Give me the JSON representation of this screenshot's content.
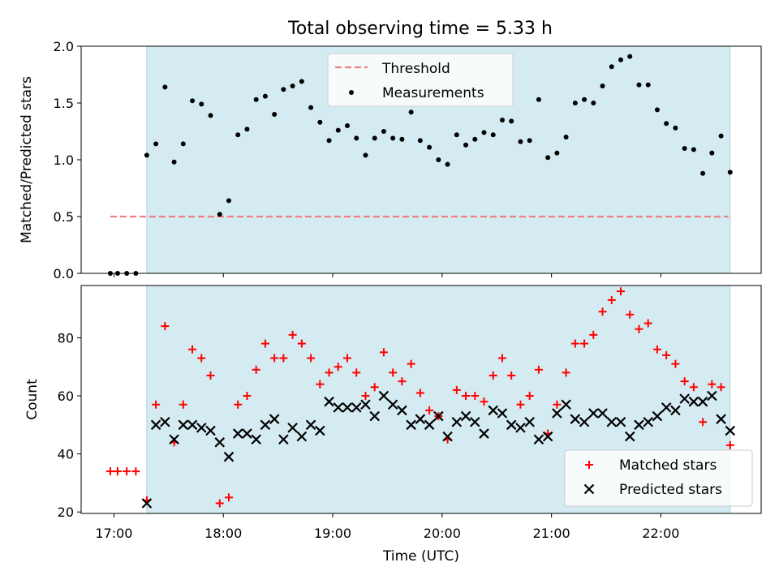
{
  "title": "Total observing time = 5.33 h",
  "colors": {
    "observing_span": "#d4ebf1",
    "threshold": "#f08080",
    "matched": "#ff0000",
    "predicted": "#000000",
    "measurement": "#000000"
  },
  "chart_data": [
    {
      "type": "scatter",
      "panel": "top",
      "ylabel": "Matched/Predicted stars",
      "ylim": [
        0.0,
        2.0
      ],
      "yticks": [
        "0.0",
        "0.5",
        "1.0",
        "1.5",
        "2.0"
      ],
      "xlim": [
        "16:42",
        "22:55"
      ],
      "xticks": [
        "17:00",
        "18:00",
        "19:00",
        "20:00",
        "21:00",
        "22:00"
      ],
      "observing_span": [
        "17:18",
        "22:38"
      ],
      "threshold": {
        "name": "Threshold",
        "value": 0.5,
        "x_range": [
          "16:58",
          "22:37"
        ]
      },
      "legend": {
        "placement": "top-center",
        "entries": [
          "Threshold",
          "Measurements"
        ]
      },
      "series": [
        {
          "name": "Measurements",
          "marker": "dot",
          "x": [
            "16:58",
            "17:02",
            "17:07",
            "17:12",
            "17:18",
            "17:23",
            "17:28",
            "17:33",
            "17:38",
            "17:43",
            "17:48",
            "17:53",
            "17:58",
            "18:03",
            "18:08",
            "18:13",
            "18:18",
            "18:23",
            "18:28",
            "18:33",
            "18:38",
            "18:43",
            "18:48",
            "18:53",
            "18:58",
            "19:03",
            "19:08",
            "19:13",
            "19:18",
            "19:23",
            "19:28",
            "19:33",
            "19:38",
            "19:43",
            "19:48",
            "19:53",
            "19:58",
            "20:03",
            "20:08",
            "20:13",
            "20:18",
            "20:23",
            "20:28",
            "20:33",
            "20:38",
            "20:43",
            "20:48",
            "20:53",
            "20:58",
            "21:03",
            "21:08",
            "21:13",
            "21:18",
            "21:23",
            "21:28",
            "21:33",
            "21:38",
            "21:43",
            "21:48",
            "21:53",
            "21:58",
            "22:03",
            "22:08",
            "22:13",
            "22:18",
            "22:23",
            "22:28",
            "22:33",
            "22:38"
          ],
          "y": [
            0.0,
            0.0,
            0.0,
            0.0,
            1.04,
            1.14,
            1.64,
            0.98,
            1.14,
            1.52,
            1.49,
            1.39,
            0.52,
            0.64,
            1.22,
            1.27,
            1.53,
            1.56,
            1.4,
            1.62,
            1.65,
            1.69,
            1.46,
            1.33,
            1.17,
            1.26,
            1.3,
            1.19,
            1.04,
            1.19,
            1.25,
            1.19,
            1.18,
            1.42,
            1.17,
            1.11,
            1.0,
            0.96,
            1.22,
            1.13,
            1.18,
            1.24,
            1.22,
            1.35,
            1.34,
            1.16,
            1.17,
            1.53,
            1.02,
            1.06,
            1.2,
            1.5,
            1.53,
            1.5,
            1.65,
            1.82,
            1.88,
            1.91,
            1.66,
            1.66,
            1.44,
            1.32,
            1.28,
            1.1,
            1.09,
            0.88,
            1.06,
            1.21,
            0.89
          ]
        }
      ]
    },
    {
      "type": "scatter",
      "panel": "bottom",
      "ylabel": "Count",
      "xlabel": "Time (UTC)",
      "ylim": [
        19.5,
        98.0
      ],
      "yticks": [
        "20",
        "40",
        "60",
        "80"
      ],
      "xlim": [
        "16:42",
        "22:55"
      ],
      "xticks": [
        "17:00",
        "18:00",
        "19:00",
        "20:00",
        "21:00",
        "22:00"
      ],
      "observing_span": [
        "17:18",
        "22:38"
      ],
      "legend": {
        "placement": "bottom-right",
        "entries": [
          "Matched stars",
          "Predicted stars"
        ]
      },
      "series": [
        {
          "name": "Matched stars",
          "marker": "plus",
          "x": [
            "16:58",
            "17:02",
            "17:07",
            "17:12",
            "17:18",
            "17:23",
            "17:28",
            "17:33",
            "17:38",
            "17:43",
            "17:48",
            "17:53",
            "17:58",
            "18:03",
            "18:08",
            "18:13",
            "18:18",
            "18:23",
            "18:28",
            "18:33",
            "18:38",
            "18:43",
            "18:48",
            "18:53",
            "18:58",
            "19:03",
            "19:08",
            "19:13",
            "19:18",
            "19:23",
            "19:28",
            "19:33",
            "19:38",
            "19:43",
            "19:48",
            "19:53",
            "19:58",
            "20:03",
            "20:08",
            "20:13",
            "20:18",
            "20:23",
            "20:28",
            "20:33",
            "20:38",
            "20:43",
            "20:48",
            "20:53",
            "20:58",
            "21:03",
            "21:08",
            "21:13",
            "21:18",
            "21:23",
            "21:28",
            "21:33",
            "21:38",
            "21:43",
            "21:48",
            "21:53",
            "21:58",
            "22:03",
            "22:08",
            "22:13",
            "22:18",
            "22:23",
            "22:28",
            "22:33",
            "22:38"
          ],
          "y": [
            34,
            34,
            34,
            34,
            24,
            57,
            84,
            44,
            57,
            76,
            73,
            67,
            23,
            25,
            57,
            60,
            69,
            78,
            73,
            73,
            81,
            78,
            73,
            64,
            68,
            70,
            73,
            68,
            60,
            63,
            75,
            68,
            65,
            71,
            61,
            55,
            53,
            45,
            62,
            60,
            60,
            58,
            67,
            73,
            67,
            57,
            60,
            69,
            47,
            57,
            68,
            78,
            78,
            81,
            89,
            93,
            96,
            88,
            83,
            85,
            76,
            74,
            71,
            65,
            63,
            51,
            64,
            63,
            43
          ]
        },
        {
          "name": "Predicted stars",
          "marker": "x",
          "x": [
            "17:18",
            "17:23",
            "17:28",
            "17:33",
            "17:38",
            "17:43",
            "17:48",
            "17:53",
            "17:58",
            "18:03",
            "18:08",
            "18:13",
            "18:18",
            "18:23",
            "18:28",
            "18:33",
            "18:38",
            "18:43",
            "18:48",
            "18:53",
            "18:58",
            "19:03",
            "19:08",
            "19:13",
            "19:18",
            "19:23",
            "19:28",
            "19:33",
            "19:38",
            "19:43",
            "19:48",
            "19:53",
            "19:58",
            "20:03",
            "20:08",
            "20:13",
            "20:18",
            "20:23",
            "20:28",
            "20:33",
            "20:38",
            "20:43",
            "20:48",
            "20:53",
            "20:58",
            "21:03",
            "21:08",
            "21:13",
            "21:18",
            "21:23",
            "21:28",
            "21:33",
            "21:38",
            "21:43",
            "21:48",
            "21:53",
            "21:58",
            "22:03",
            "22:08",
            "22:13",
            "22:18",
            "22:23",
            "22:28",
            "22:33",
            "22:38"
          ],
          "y": [
            23,
            50,
            51,
            45,
            50,
            50,
            49,
            48,
            44,
            39,
            47,
            47,
            45,
            50,
            52,
            45,
            49,
            46,
            50,
            48,
            58,
            56,
            56,
            56,
            57,
            53,
            60,
            57,
            55,
            50,
            52,
            50,
            53,
            46,
            51,
            53,
            51,
            47,
            55,
            54,
            50,
            49,
            51,
            45,
            46,
            54,
            57,
            52,
            51,
            54,
            54,
            51,
            51,
            46,
            50,
            51,
            53,
            56,
            55,
            59,
            58,
            58,
            60,
            52,
            48
          ]
        }
      ]
    }
  ]
}
